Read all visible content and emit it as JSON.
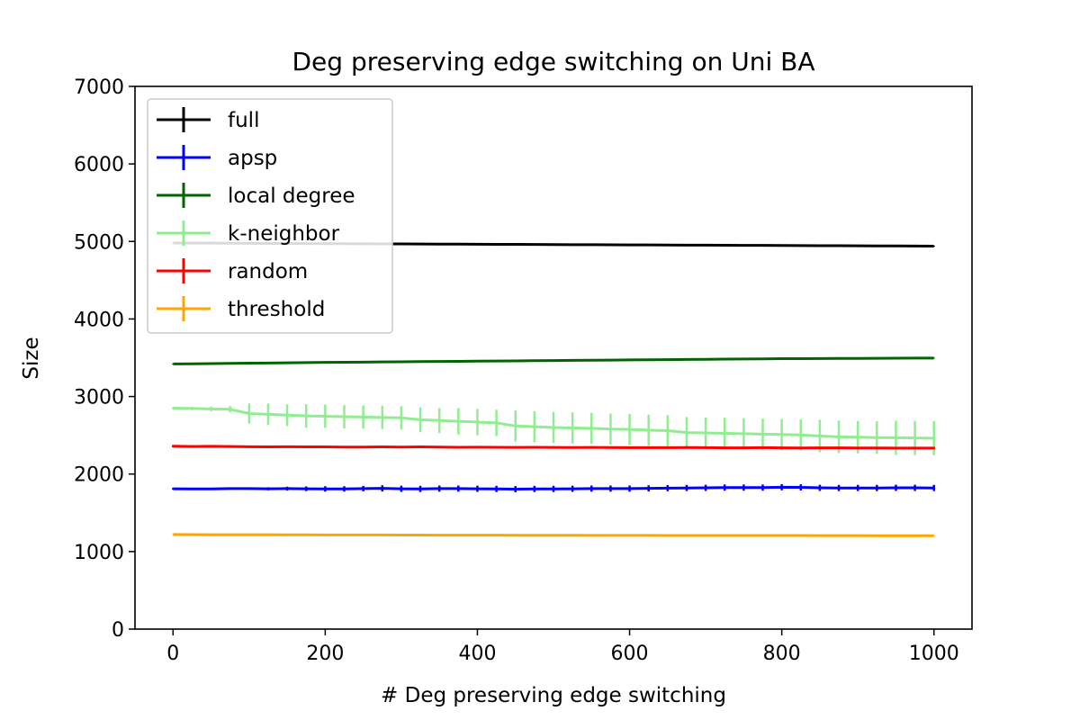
{
  "chart_data": {
    "type": "line",
    "title": "Deg preserving edge switching on Uni BA",
    "xlabel": "# Deg preserving edge switching",
    "ylabel": "Size",
    "xlim": [
      -50,
      1050
    ],
    "ylim": [
      0,
      7000
    ],
    "xticks": [
      "0",
      "200",
      "400",
      "600",
      "800",
      "1000"
    ],
    "yticks": [
      "0",
      "1000",
      "2000",
      "3000",
      "4000",
      "5000",
      "6000",
      "7000"
    ],
    "legend_position": "upper-left",
    "grid": false,
    "x": [
      0,
      25,
      50,
      75,
      100,
      125,
      150,
      175,
      200,
      225,
      250,
      275,
      300,
      325,
      350,
      375,
      400,
      425,
      450,
      475,
      500,
      525,
      550,
      575,
      600,
      625,
      650,
      675,
      700,
      725,
      750,
      775,
      800,
      825,
      850,
      875,
      900,
      925,
      950,
      975,
      1000
    ],
    "series": [
      {
        "name": "full",
        "color": "#000000",
        "values": [
          4980,
          4979,
          4978,
          4977,
          4976,
          4975,
          4974,
          4973,
          4972,
          4971,
          4970,
          4969,
          4968,
          4967,
          4966,
          4965,
          4964,
          4963,
          4962,
          4961,
          4960,
          4959,
          4958,
          4957,
          4956,
          4955,
          4954,
          4953,
          4952,
          4951,
          4950,
          4949,
          4948,
          4947,
          4946,
          4945,
          4944,
          4943,
          4942,
          4941,
          4940
        ],
        "errors": [
          5,
          5,
          5,
          5,
          5,
          5,
          5,
          5,
          5,
          5,
          5,
          5,
          5,
          5,
          5,
          5,
          5,
          5,
          5,
          5,
          5,
          5,
          5,
          5,
          5,
          5,
          5,
          5,
          5,
          5,
          5,
          5,
          5,
          5,
          5,
          5,
          5,
          5,
          5,
          5,
          5
        ]
      },
      {
        "name": "apsp",
        "color": "#0000ff",
        "values": [
          1810,
          1808,
          1808,
          1812,
          1812,
          1810,
          1812,
          1810,
          1808,
          1808,
          1812,
          1815,
          1810,
          1808,
          1812,
          1812,
          1810,
          1808,
          1805,
          1808,
          1808,
          1810,
          1812,
          1812,
          1812,
          1815,
          1818,
          1820,
          1822,
          1825,
          1825,
          1825,
          1830,
          1828,
          1822,
          1820,
          1820,
          1820,
          1822,
          1822,
          1820
        ],
        "errors": [
          10,
          10,
          10,
          15,
          15,
          20,
          25,
          30,
          35,
          35,
          35,
          40,
          40,
          40,
          40,
          40,
          40,
          40,
          40,
          40,
          40,
          40,
          40,
          40,
          40,
          40,
          40,
          40,
          40,
          40,
          40,
          40,
          40,
          40,
          40,
          40,
          40,
          40,
          40,
          40,
          40
        ]
      },
      {
        "name": "local degree",
        "color": "#006400",
        "values": [
          3420,
          3422,
          3425,
          3428,
          3430,
          3432,
          3435,
          3437,
          3440,
          3442,
          3444,
          3446,
          3448,
          3450,
          3452,
          3454,
          3456,
          3458,
          3460,
          3462,
          3464,
          3466,
          3468,
          3470,
          3472,
          3474,
          3476,
          3478,
          3480,
          3482,
          3484,
          3486,
          3488,
          3489,
          3490,
          3491,
          3492,
          3493,
          3494,
          3495,
          3495
        ],
        "errors": [
          5,
          5,
          5,
          5,
          5,
          5,
          5,
          5,
          5,
          5,
          5,
          5,
          5,
          5,
          5,
          5,
          5,
          5,
          5,
          5,
          5,
          5,
          5,
          5,
          5,
          5,
          5,
          5,
          5,
          5,
          5,
          5,
          5,
          5,
          5,
          5,
          5,
          5,
          5,
          5,
          5
        ]
      },
      {
        "name": "k-neighbor",
        "color": "#90ee90",
        "values": [
          2850,
          2845,
          2840,
          2835,
          2780,
          2770,
          2760,
          2750,
          2745,
          2740,
          2735,
          2730,
          2725,
          2700,
          2690,
          2680,
          2670,
          2660,
          2620,
          2610,
          2600,
          2595,
          2590,
          2580,
          2575,
          2565,
          2560,
          2535,
          2530,
          2525,
          2520,
          2515,
          2510,
          2505,
          2490,
          2480,
          2475,
          2470,
          2468,
          2465,
          2462
        ],
        "errors": [
          10,
          20,
          30,
          40,
          130,
          140,
          140,
          150,
          150,
          150,
          150,
          150,
          150,
          160,
          160,
          170,
          170,
          170,
          200,
          200,
          200,
          200,
          200,
          200,
          200,
          200,
          200,
          200,
          200,
          200,
          200,
          200,
          200,
          200,
          210,
          210,
          210,
          210,
          220,
          220,
          220
        ]
      },
      {
        "name": "random",
        "color": "#ff0000",
        "values": [
          2360,
          2355,
          2358,
          2355,
          2352,
          2350,
          2352,
          2350,
          2350,
          2348,
          2348,
          2350,
          2348,
          2350,
          2348,
          2345,
          2346,
          2345,
          2344,
          2345,
          2344,
          2342,
          2343,
          2342,
          2340,
          2341,
          2340,
          2342,
          2340,
          2338,
          2338,
          2340,
          2338,
          2336,
          2337,
          2337,
          2336,
          2336,
          2335,
          2335,
          2335
        ],
        "errors": [
          15,
          15,
          15,
          15,
          15,
          15,
          15,
          15,
          15,
          15,
          15,
          15,
          15,
          15,
          15,
          15,
          15,
          15,
          15,
          15,
          15,
          15,
          15,
          15,
          15,
          15,
          15,
          15,
          15,
          15,
          15,
          15,
          15,
          15,
          15,
          15,
          15,
          15,
          15,
          15,
          15
        ]
      },
      {
        "name": "threshold",
        "color": "#ffa500",
        "values": [
          1220,
          1219,
          1218,
          1218,
          1217,
          1217,
          1216,
          1216,
          1215,
          1215,
          1214,
          1214,
          1213,
          1213,
          1212,
          1212,
          1211,
          1211,
          1210,
          1210,
          1210,
          1210,
          1209,
          1209,
          1209,
          1209,
          1208,
          1208,
          1208,
          1208,
          1207,
          1207,
          1207,
          1207,
          1206,
          1206,
          1206,
          1205,
          1205,
          1205,
          1205
        ],
        "errors": [
          3,
          3,
          3,
          3,
          3,
          3,
          3,
          3,
          3,
          3,
          3,
          3,
          3,
          3,
          3,
          3,
          3,
          3,
          3,
          3,
          3,
          3,
          3,
          3,
          3,
          3,
          3,
          3,
          3,
          3,
          3,
          3,
          3,
          3,
          3,
          3,
          3,
          3,
          3,
          3,
          3
        ]
      }
    ]
  }
}
